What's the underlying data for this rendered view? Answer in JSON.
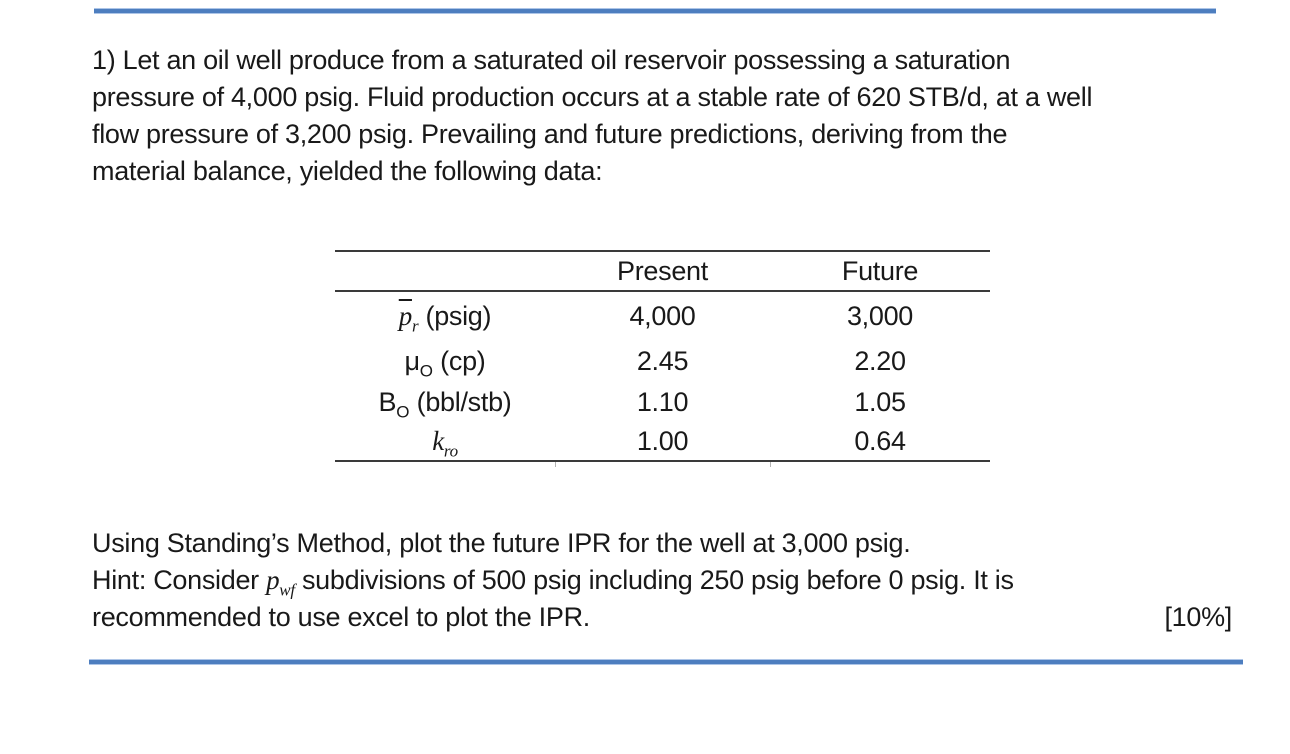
{
  "problem": {
    "lines": [
      "1) Let an oil well produce from a saturated oil reservoir possessing a saturation",
      "pressure of 4,000 psig. Fluid production occurs at a stable rate of 620 STB/d, at a well",
      "flow pressure of 3,200 psig. Prevailing and future predictions, deriving from the",
      "material balance, yielded the following data:"
    ]
  },
  "table": {
    "col_headers": [
      "Present",
      "Future"
    ],
    "rows": [
      {
        "symbol": "p",
        "overline": true,
        "math": true,
        "sub": "r",
        "unit": "(psig)",
        "present": "4,000",
        "future": "3,000"
      },
      {
        "symbol": "μ",
        "overline": false,
        "math": false,
        "sub": "O",
        "unit": "(cp)",
        "present": "2.45",
        "future": "2.20"
      },
      {
        "symbol": "B",
        "overline": false,
        "math": false,
        "sub": "O",
        "unit": "(bbl/stb)",
        "present": "1.10",
        "future": "1.05"
      },
      {
        "symbol": "k",
        "overline": false,
        "math": true,
        "sub": "ro",
        "unit": "",
        "present": "1.00",
        "future": "0.64"
      }
    ]
  },
  "question": {
    "line1": "Using Standing’s Method, plot the future IPR for the well at 3,000 psig.",
    "hint_prefix": "Hint: Consider ",
    "hint_var": "p",
    "hint_var_sub": "wf",
    "hint_suffix": " subdivisions of 500 psig including 250 psig before 0 psig. It is",
    "line3": "recommended to use excel to plot the IPR.",
    "marks": "[10%]"
  },
  "colors": {
    "divider_blue": "#4d7ebf",
    "divider_blue_light": "#adc5e7",
    "table_rule": "#3a3a3a",
    "text": "#191919"
  }
}
